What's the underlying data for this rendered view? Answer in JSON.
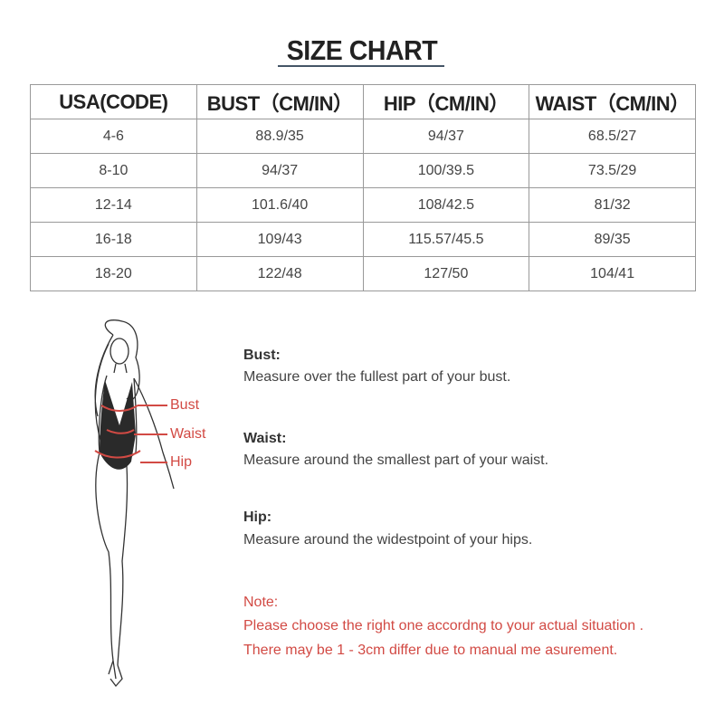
{
  "title": "SIZE CHART",
  "table": {
    "headers": [
      "USA(CODE)",
      "BUST（CM/IN）",
      "HIP（CM/IN）",
      "WAIST（CM/IN）"
    ],
    "rows": [
      [
        "4-6",
        "88.9/35",
        "94/37",
        "68.5/27"
      ],
      [
        "8-10",
        "94/37",
        "100/39.5",
        "73.5/29"
      ],
      [
        "12-14",
        "101.6/40",
        "108/42.5",
        "81/32"
      ],
      [
        "16-18",
        "109/43",
        "115.57/45.5",
        "89/35"
      ],
      [
        "18-20",
        "122/48",
        "127/50",
        "104/41"
      ]
    ]
  },
  "figure_labels": {
    "bust": "Bust",
    "waist": "Waist",
    "hip": "Hip"
  },
  "instructions": {
    "bust": {
      "title": "Bust:",
      "text": "Measure over the fullest part of your bust."
    },
    "waist": {
      "title": "Waist:",
      "text": "Measure around the smallest part of your waist."
    },
    "hip": {
      "title": "Hip:",
      "text": "Measure around the widestpoint of your hips."
    }
  },
  "note": {
    "title": "Note:",
    "line1": "Please choose the right one accordng to your actual situation .",
    "line2": "There may be 1 - 3cm differ due to manual me asurement."
  },
  "colors": {
    "accent_red": "#d24a44",
    "text": "#333333",
    "border": "#999999"
  }
}
